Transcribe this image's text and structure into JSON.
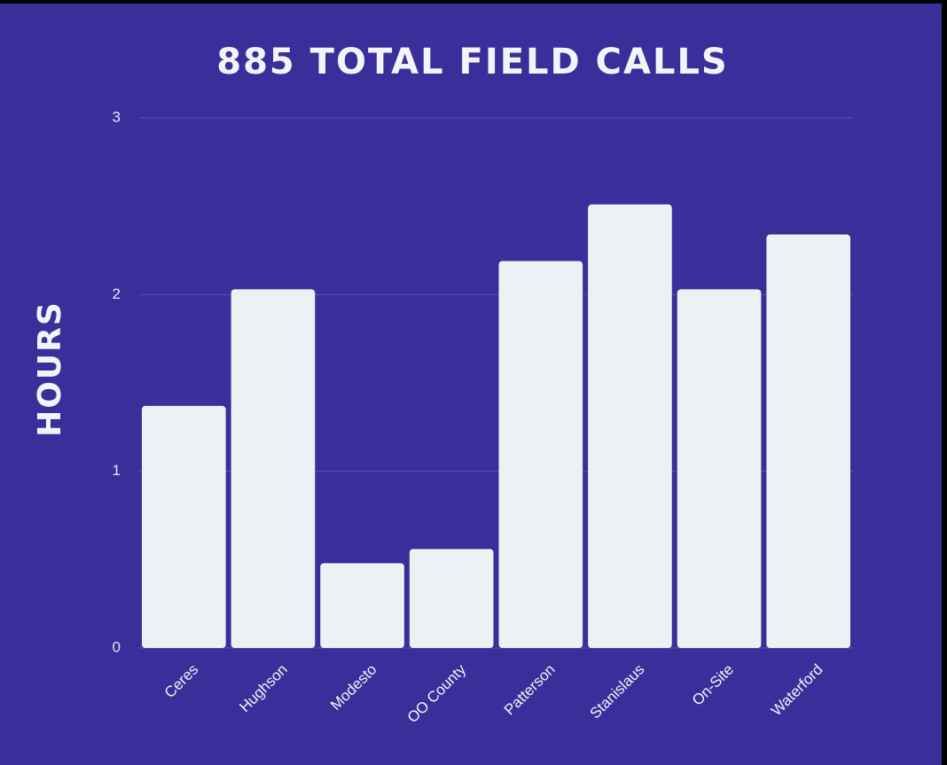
{
  "chart_data": {
    "type": "bar",
    "title": "885 TOTAL FIELD CALLS",
    "y_label": "HOURS",
    "categories": [
      "Ceres",
      "Hughson",
      "Modesto",
      "OO County",
      "Patterson",
      "Stanislaus",
      "On-Site",
      "Waterford"
    ],
    "values": [
      1.37,
      2.03,
      0.48,
      0.56,
      2.19,
      2.51,
      2.03,
      2.34
    ],
    "color": "#eef1f3",
    "ylim": [
      0,
      3
    ],
    "yticks": [
      0,
      1,
      2,
      3
    ],
    "grid": true
  }
}
